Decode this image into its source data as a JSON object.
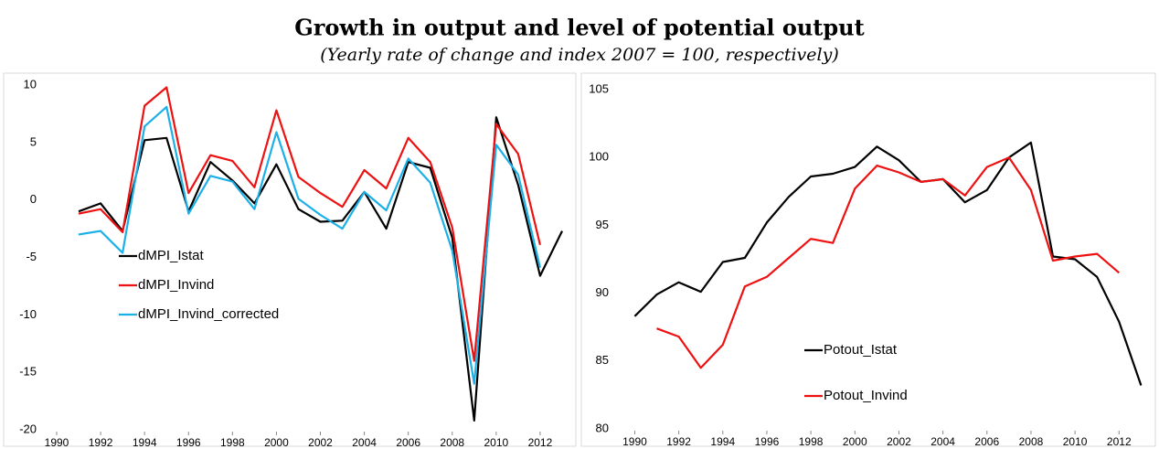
{
  "title": "Growth in output and level of potential output",
  "subtitle": "(Yearly rate of change and index 2007 = 100, respectively)",
  "chart_data": [
    {
      "type": "line",
      "x": [
        1991,
        1992,
        1993,
        1994,
        1995,
        1996,
        1997,
        1998,
        1999,
        2000,
        2001,
        2002,
        2003,
        2004,
        2005,
        2006,
        2007,
        2008,
        2009,
        2010,
        2011,
        2012,
        2013
      ],
      "series": [
        {
          "name": "dMPI_Istat",
          "color": "#000000",
          "values": [
            -1.0,
            -0.3,
            -2.7,
            5.2,
            5.4,
            -1.0,
            3.3,
            1.7,
            -0.3,
            3.1,
            -0.8,
            -1.9,
            -1.8,
            0.7,
            -2.5,
            3.3,
            2.8,
            -3.3,
            -19.2,
            7.2,
            1.3,
            -6.6,
            -2.7
          ]
        },
        {
          "name": "dMPI_Invind",
          "color": "#ee1111",
          "values": [
            -1.2,
            -0.8,
            -2.8,
            8.2,
            9.8,
            0.6,
            3.9,
            3.4,
            1.1,
            7.8,
            2.0,
            0.6,
            -0.6,
            2.6,
            1.0,
            5.4,
            3.3,
            -2.4,
            -14.0,
            6.6,
            4.0,
            -3.9,
            null
          ]
        },
        {
          "name": "dMPI_Invind_corrected",
          "color": "#1cb0e8",
          "values": [
            -3.0,
            -2.7,
            -4.6,
            6.4,
            8.1,
            -1.2,
            2.1,
            1.6,
            -0.8,
            5.9,
            0.1,
            -1.3,
            -2.5,
            0.7,
            -0.9,
            3.6,
            1.5,
            -4.4,
            -16.0,
            4.8,
            2.2,
            -5.9,
            null
          ]
        }
      ],
      "xlim": [
        1990,
        2013.5
      ],
      "xticks": [
        1990,
        1992,
        1994,
        1996,
        1998,
        2000,
        2002,
        2004,
        2006,
        2008,
        2010,
        2012
      ],
      "ylim": [
        -20,
        10
      ],
      "yticks": [
        -20,
        -15,
        -10,
        -5,
        0,
        5,
        10
      ],
      "grid": false,
      "legend": "lower left"
    },
    {
      "type": "line",
      "x": [
        1990,
        1991,
        1992,
        1993,
        1994,
        1995,
        1996,
        1997,
        1998,
        1999,
        2000,
        2001,
        2002,
        2003,
        2004,
        2005,
        2006,
        2007,
        2008,
        2009,
        2010,
        2011,
        2012,
        2013
      ],
      "series": [
        {
          "name": "Potout_Istat",
          "color": "#000000",
          "values": [
            88.3,
            89.9,
            90.8,
            90.1,
            92.3,
            92.6,
            95.2,
            97.1,
            98.6,
            98.8,
            99.3,
            100.8,
            99.8,
            98.2,
            98.4,
            96.7,
            97.6,
            100.0,
            101.1,
            92.7,
            92.5,
            91.2,
            87.9,
            83.2
          ]
        },
        {
          "name": "Potout_Invind",
          "color": "#ee1111",
          "values": [
            null,
            87.4,
            86.8,
            84.5,
            86.2,
            90.5,
            91.2,
            92.6,
            94.0,
            93.7,
            97.7,
            99.4,
            98.9,
            98.2,
            98.4,
            97.2,
            99.3,
            100.0,
            97.6,
            92.4,
            92.7,
            92.9,
            91.5,
            null
          ]
        }
      ],
      "xlim": [
        1989.4,
        2013.4
      ],
      "xticks": [
        1990,
        1992,
        1994,
        1996,
        1998,
        2000,
        2002,
        2004,
        2006,
        2008,
        2010,
        2012
      ],
      "ylim": [
        80,
        105
      ],
      "yticks": [
        80,
        85,
        90,
        95,
        100,
        105
      ],
      "grid": false,
      "legend": "lower left"
    }
  ]
}
